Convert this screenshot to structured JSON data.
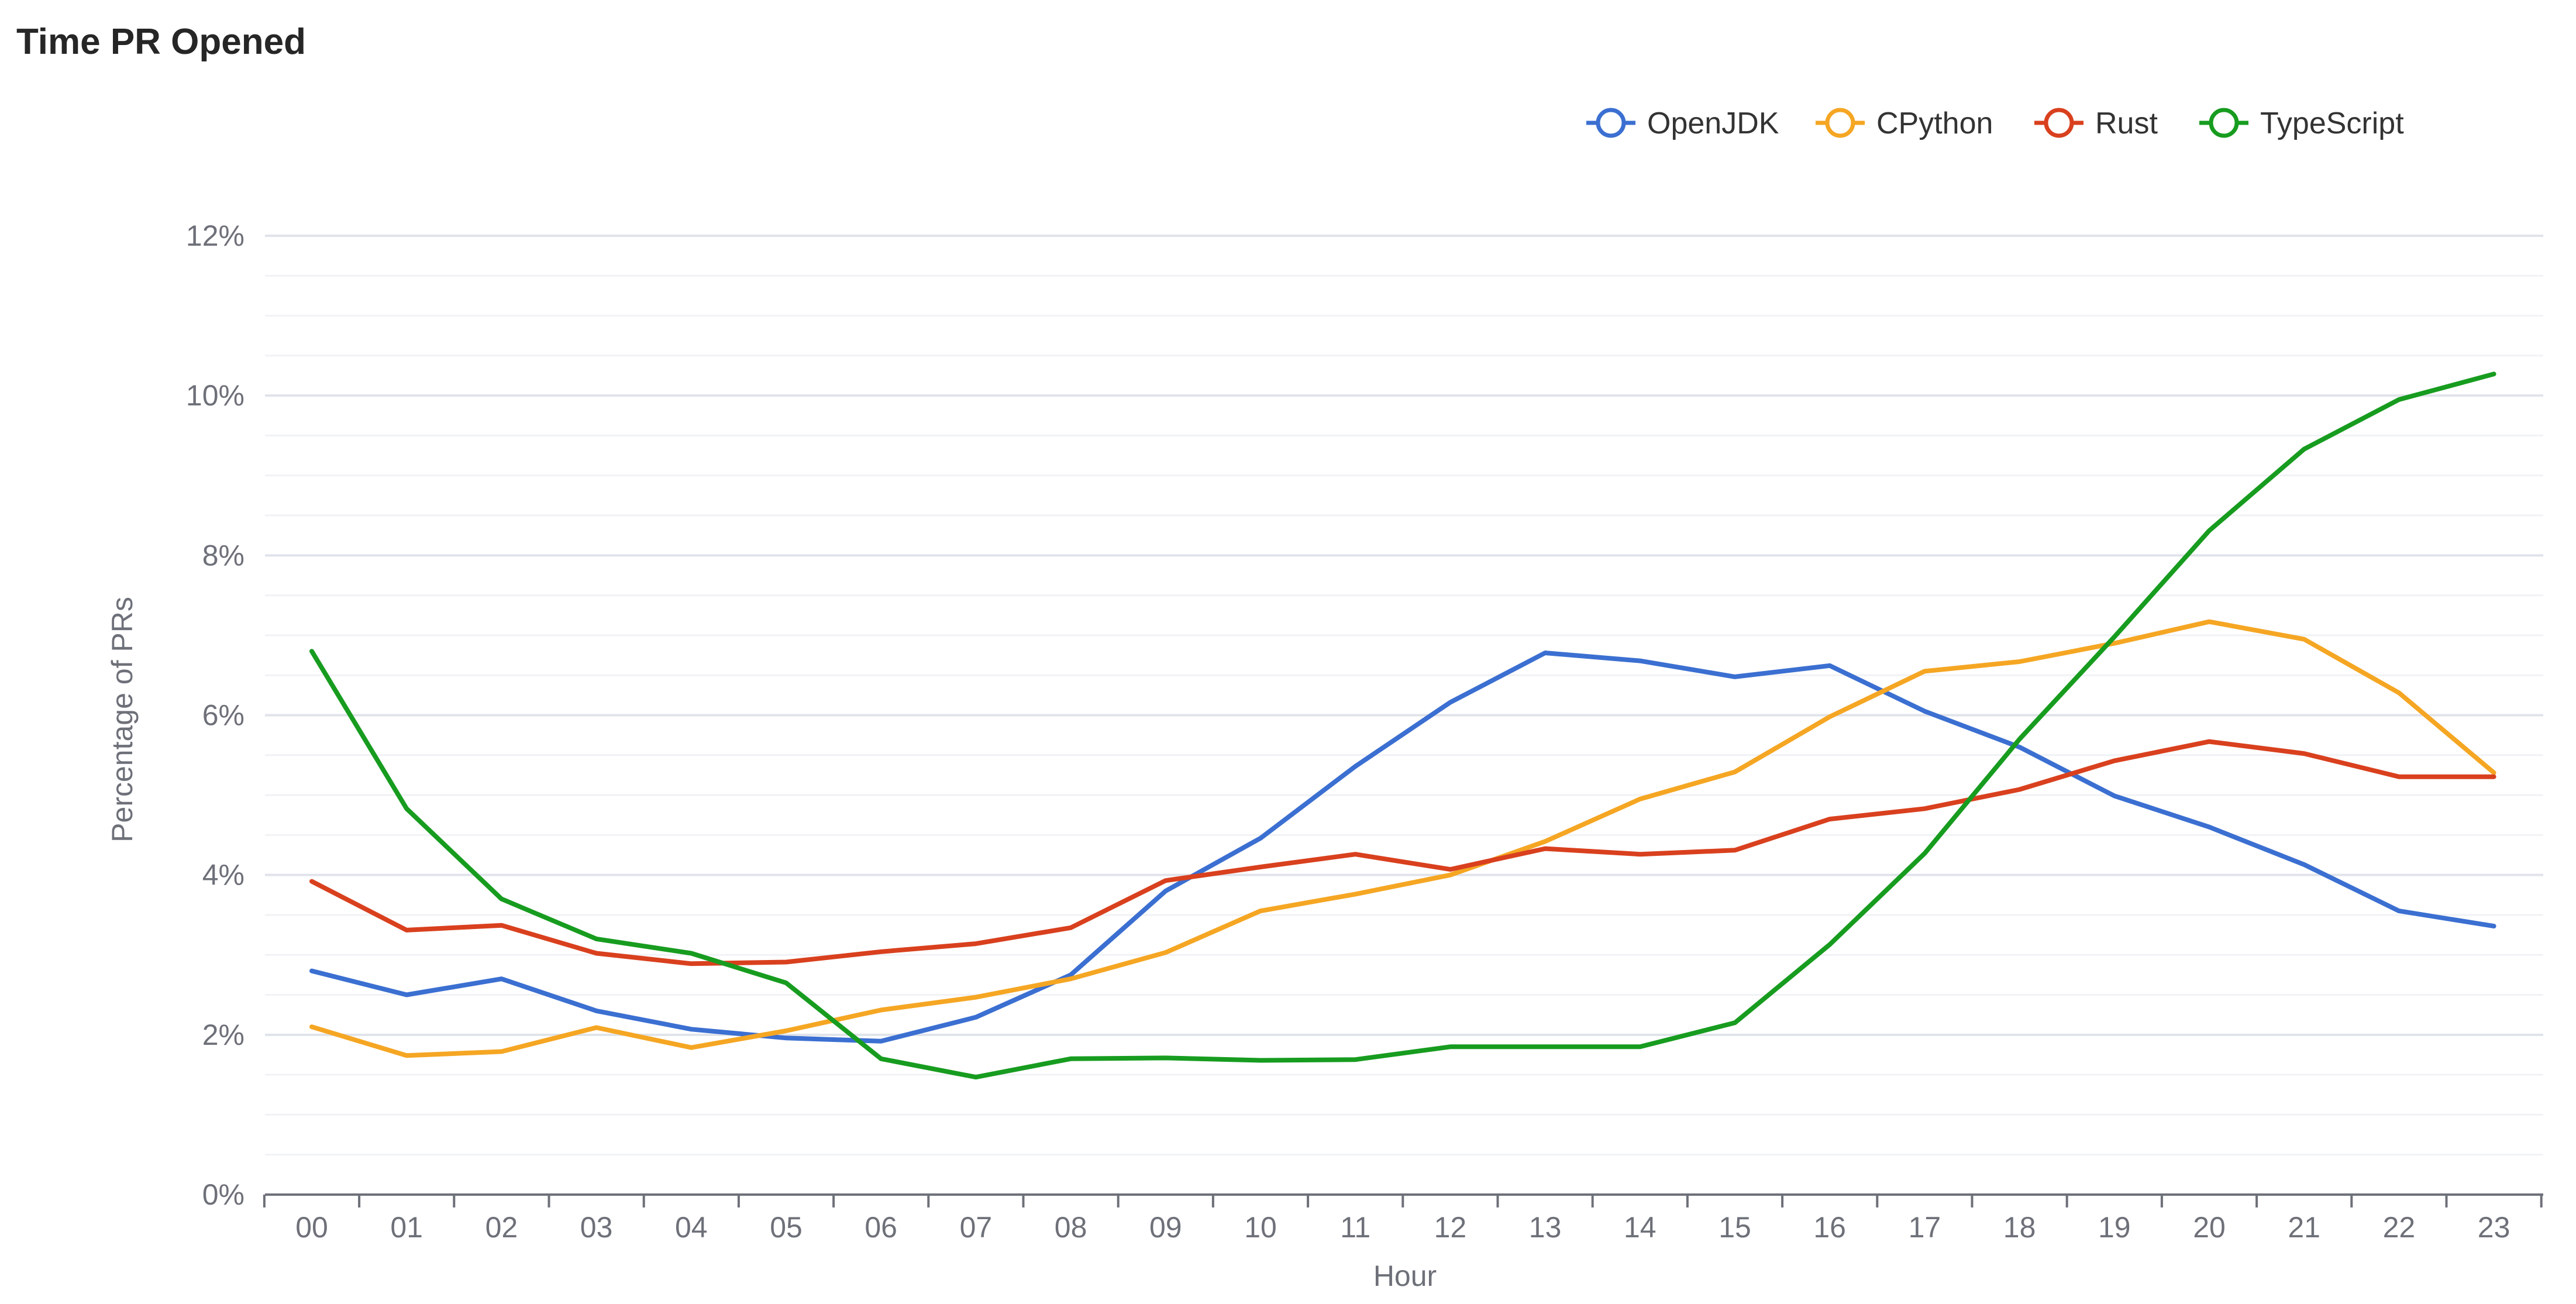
{
  "chart_data": {
    "type": "line",
    "title": "Time PR Opened",
    "xlabel": "Hour",
    "ylabel": "Percentage of PRs",
    "categories": [
      "00",
      "01",
      "02",
      "03",
      "04",
      "05",
      "06",
      "07",
      "08",
      "09",
      "10",
      "11",
      "12",
      "13",
      "14",
      "15",
      "16",
      "17",
      "18",
      "19",
      "20",
      "21",
      "22",
      "23"
    ],
    "ylim": [
      0,
      12
    ],
    "y_ticks": [
      "0%",
      "2%",
      "4%",
      "6%",
      "8%",
      "10%",
      "12%"
    ],
    "grid": true,
    "legend_position": "top-right",
    "series": [
      {
        "name": "OpenJDK",
        "color": "#3b6fd1",
        "values": [
          2.8,
          2.5,
          2.7,
          2.3,
          2.07,
          1.96,
          1.92,
          2.22,
          2.75,
          3.8,
          4.46,
          5.36,
          6.16,
          6.78,
          6.68,
          6.48,
          6.62,
          6.05,
          5.6,
          4.99,
          4.6,
          4.13,
          3.55,
          3.36
        ]
      },
      {
        "name": "CPython",
        "color": "#f5a623",
        "values": [
          2.1,
          1.74,
          1.79,
          2.09,
          1.84,
          2.05,
          2.31,
          2.47,
          2.7,
          3.03,
          3.55,
          3.76,
          4.0,
          4.42,
          4.95,
          5.29,
          5.98,
          6.55,
          6.67,
          6.9,
          7.17,
          6.95,
          6.28,
          5.28
        ]
      },
      {
        "name": "Rust",
        "color": "#d9401e",
        "values": [
          3.92,
          3.31,
          3.37,
          3.02,
          2.89,
          2.91,
          3.04,
          3.14,
          3.34,
          3.93,
          4.1,
          4.26,
          4.07,
          4.33,
          4.26,
          4.31,
          4.7,
          4.83,
          5.07,
          5.43,
          5.67,
          5.52,
          5.23,
          5.23
        ]
      },
      {
        "name": "TypeScript",
        "color": "#179c1f",
        "values": [
          6.8,
          4.83,
          3.7,
          3.2,
          3.02,
          2.65,
          1.7,
          1.47,
          1.7,
          1.71,
          1.68,
          1.69,
          1.85,
          1.85,
          1.85,
          2.15,
          3.13,
          4.27,
          5.7,
          6.98,
          8.31,
          9.33,
          9.95,
          10.27
        ]
      }
    ]
  }
}
